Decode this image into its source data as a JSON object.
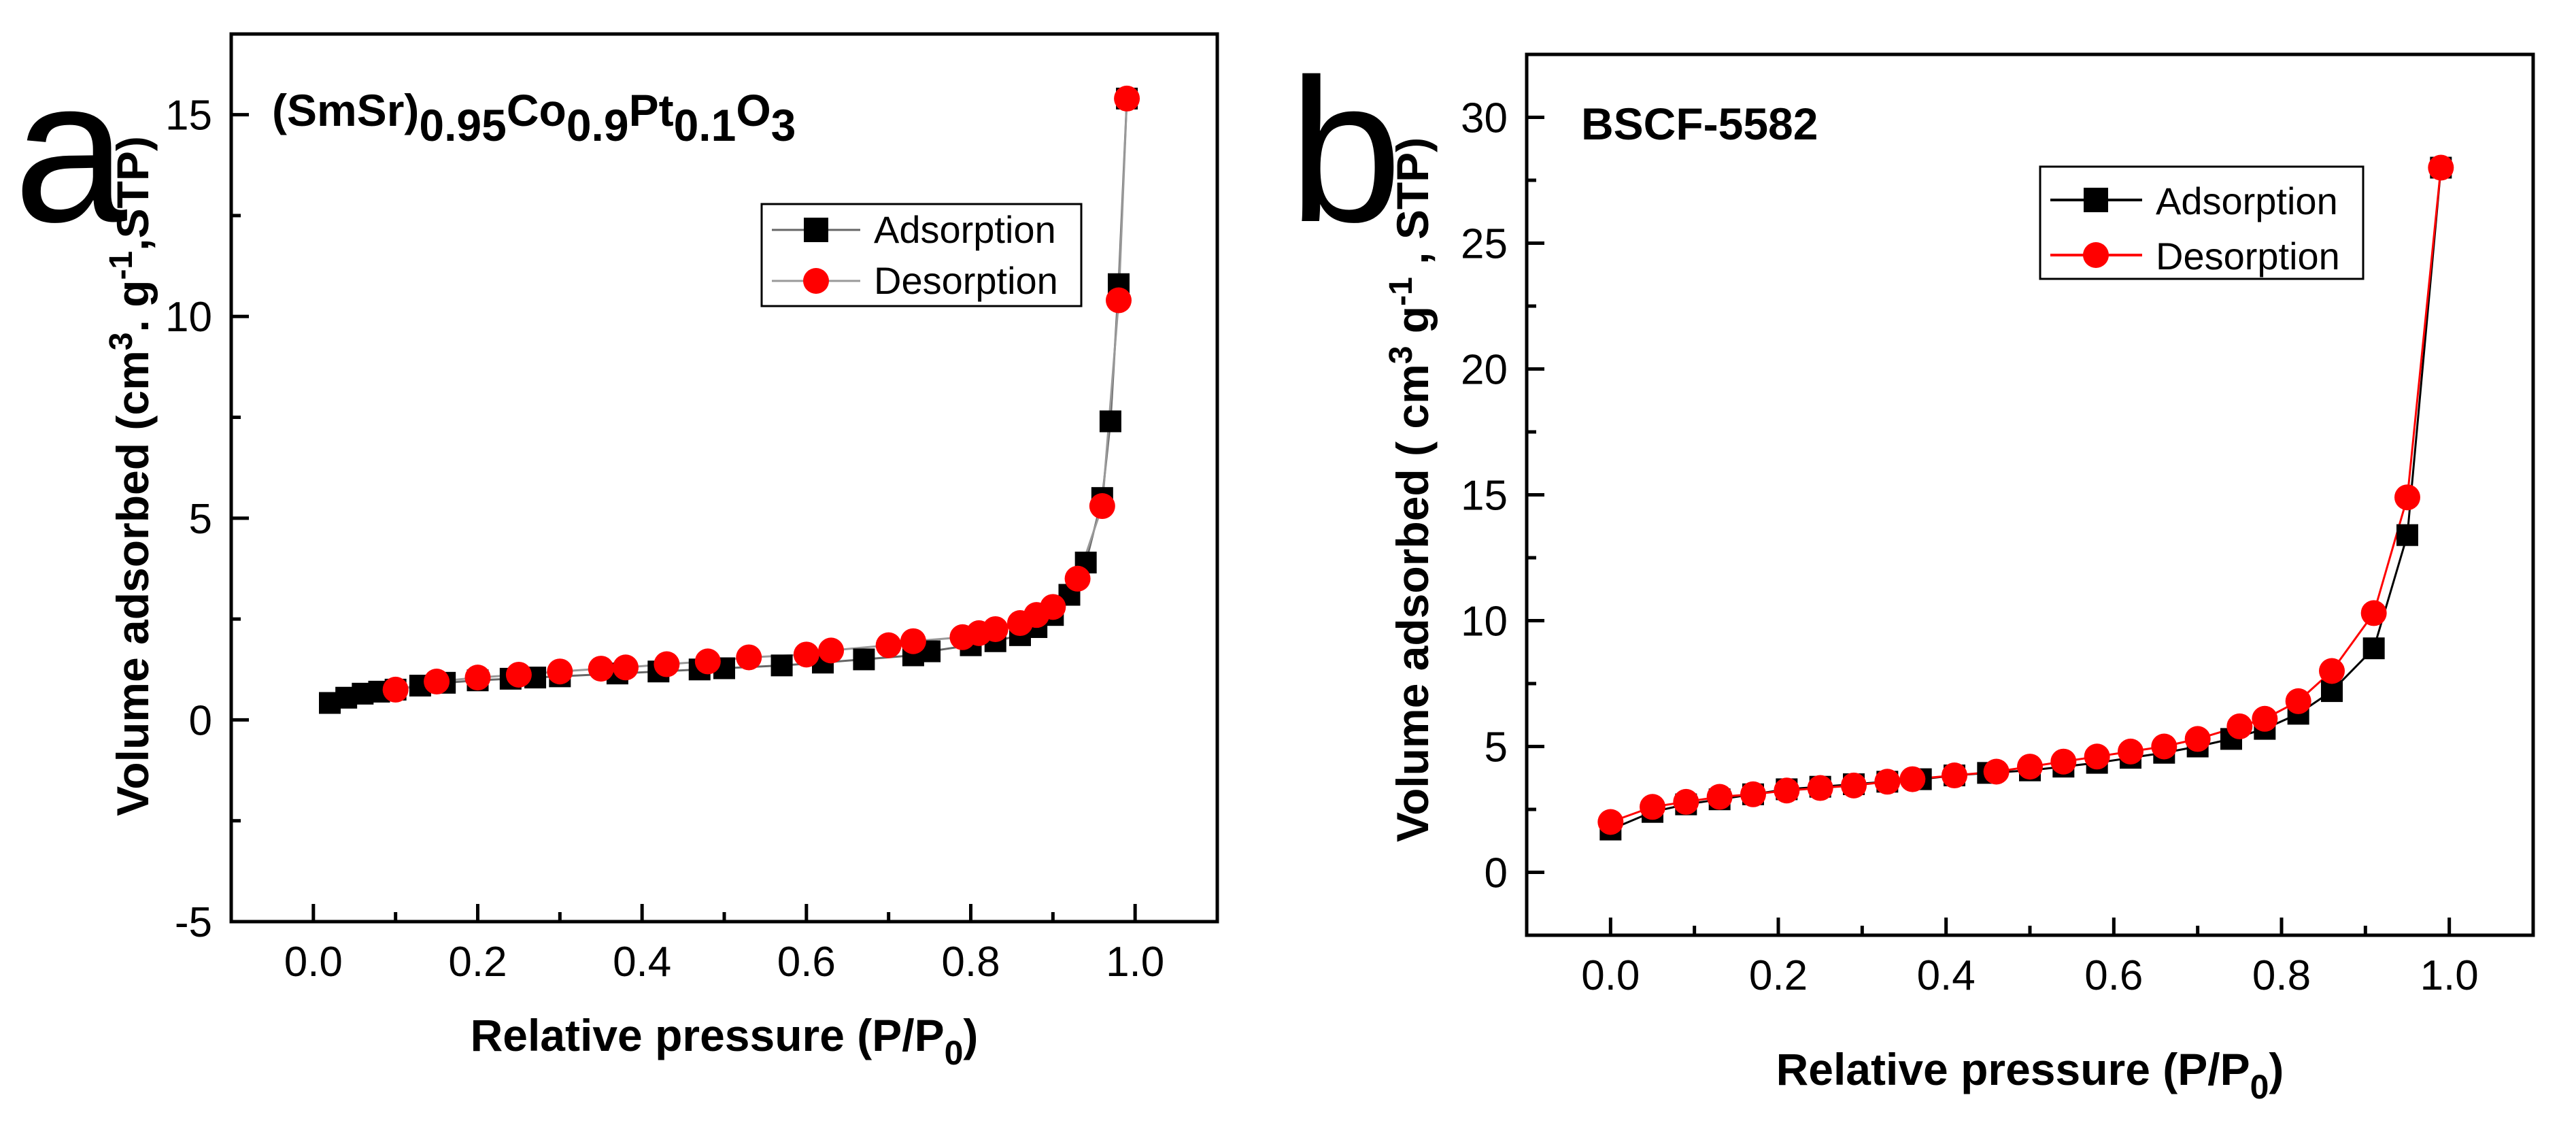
{
  "panels": [
    {
      "letter": "a",
      "chart_data": {
        "type": "scatter",
        "title_parts": [
          "(SmSr)",
          "0.95",
          "Co",
          "0.9",
          "Pt",
          "0.1",
          "O",
          "3"
        ],
        "xlabel_main": "Relative pressure (P/P",
        "xlabel_sub": "0",
        "xlabel_end": ")",
        "ylabel_parts": [
          "Volume adsorbed (cm",
          "3",
          ". g",
          "-1",
          ",STP)"
        ],
        "xlim": [
          -0.1,
          1.1
        ],
        "ylim": [
          -5,
          17
        ],
        "xticks": [
          0.0,
          0.2,
          0.4,
          0.6,
          0.8,
          1.0
        ],
        "xtick_labels": [
          "0.0",
          "0.2",
          "0.4",
          "0.6",
          "0.8",
          "1.0"
        ],
        "yticks": [
          -5,
          0,
          5,
          10,
          15
        ],
        "ytick_labels": [
          "-5",
          "0",
          "5",
          "10",
          "15"
        ],
        "legend": [
          "Adsorption",
          "Desorption"
        ],
        "series": [
          {
            "name": "Adsorption",
            "color": "#000000",
            "marker": "square",
            "line_color": "#666666",
            "x": [
              0.02,
              0.04,
              0.06,
              0.08,
              0.1,
              0.13,
              0.16,
              0.2,
              0.24,
              0.27,
              0.3,
              0.37,
              0.42,
              0.47,
              0.5,
              0.57,
              0.62,
              0.67,
              0.73,
              0.75,
              0.8,
              0.83,
              0.86,
              0.88,
              0.9,
              0.92,
              0.94,
              0.96,
              0.97,
              0.98,
              0.99
            ],
            "y": [
              0.42,
              0.55,
              0.65,
              0.7,
              0.75,
              0.85,
              0.92,
              0.98,
              1.02,
              1.05,
              1.08,
              1.15,
              1.2,
              1.25,
              1.28,
              1.35,
              1.42,
              1.5,
              1.6,
              1.7,
              1.85,
              1.95,
              2.1,
              2.3,
              2.6,
              3.1,
              3.9,
              5.5,
              7.4,
              10.8,
              15.4
            ]
          },
          {
            "name": "Desorption",
            "color": "#ff0000",
            "marker": "circle",
            "line_color": "#999999",
            "x": [
              0.1,
              0.15,
              0.2,
              0.25,
              0.3,
              0.35,
              0.38,
              0.43,
              0.48,
              0.53,
              0.6,
              0.63,
              0.7,
              0.73,
              0.79,
              0.81,
              0.83,
              0.86,
              0.88,
              0.9,
              0.93,
              0.96,
              0.98,
              0.99
            ],
            "y": [
              0.75,
              0.95,
              1.05,
              1.12,
              1.2,
              1.27,
              1.3,
              1.38,
              1.45,
              1.55,
              1.62,
              1.72,
              1.85,
              1.95,
              2.05,
              2.15,
              2.25,
              2.4,
              2.6,
              2.8,
              3.5,
              5.3,
              10.4,
              15.4
            ]
          }
        ]
      }
    },
    {
      "letter": "b",
      "chart_data": {
        "type": "line",
        "title_parts": [
          "BSCF-5582"
        ],
        "xlabel_main": "Relative pressure (P/P",
        "xlabel_sub": "0",
        "xlabel_end": ")",
        "ylabel_parts": [
          "Volume adsorbed ( cm",
          "3",
          " g",
          "-1",
          " , STP)"
        ],
        "xlim": [
          -0.1,
          1.1
        ],
        "ylim": [
          -2.5,
          32.5
        ],
        "xticks": [
          0.0,
          0.2,
          0.4,
          0.6,
          0.8,
          1.0
        ],
        "xtick_labels": [
          "0.0",
          "0.2",
          "0.4",
          "0.6",
          "0.8",
          "1.0"
        ],
        "yticks": [
          0,
          5,
          10,
          15,
          20,
          25,
          30
        ],
        "ytick_labels": [
          "0",
          "5",
          "10",
          "15",
          "20",
          "25",
          "30"
        ],
        "legend": [
          "Adsorption",
          "Desorption"
        ],
        "series": [
          {
            "name": "Adsorption",
            "color": "#000000",
            "marker": "square",
            "line_color": "#000000",
            "x": [
              0.0,
              0.05,
              0.09,
              0.13,
              0.17,
              0.21,
              0.25,
              0.29,
              0.33,
              0.37,
              0.41,
              0.45,
              0.5,
              0.54,
              0.58,
              0.62,
              0.66,
              0.7,
              0.74,
              0.78,
              0.82,
              0.86,
              0.91,
              0.95,
              0.99
            ],
            "y": [
              1.7,
              2.4,
              2.7,
              2.9,
              3.1,
              3.3,
              3.4,
              3.5,
              3.6,
              3.7,
              3.85,
              3.95,
              4.05,
              4.2,
              4.35,
              4.55,
              4.75,
              5.0,
              5.3,
              5.7,
              6.3,
              7.2,
              8.9,
              13.4,
              28.0
            ]
          },
          {
            "name": "Desorption",
            "color": "#ff0000",
            "marker": "circle",
            "line_color": "#ff0000",
            "x": [
              0.0,
              0.05,
              0.09,
              0.13,
              0.17,
              0.21,
              0.25,
              0.29,
              0.33,
              0.36,
              0.41,
              0.46,
              0.5,
              0.54,
              0.58,
              0.62,
              0.66,
              0.7,
              0.75,
              0.78,
              0.82,
              0.86,
              0.91,
              0.95,
              0.99
            ],
            "y": [
              2.0,
              2.6,
              2.8,
              3.0,
              3.1,
              3.25,
              3.35,
              3.45,
              3.6,
              3.7,
              3.85,
              4.0,
              4.2,
              4.4,
              4.6,
              4.8,
              5.0,
              5.3,
              5.8,
              6.1,
              6.8,
              8.0,
              10.3,
              14.9,
              28.0
            ]
          }
        ]
      }
    }
  ]
}
